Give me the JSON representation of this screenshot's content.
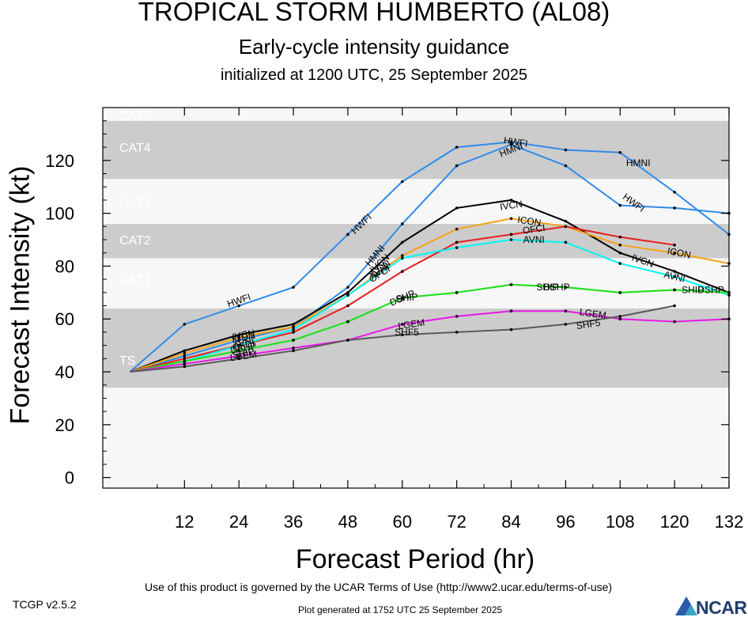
{
  "header": {
    "title": "TROPICAL STORM HUMBERTO (AL08)",
    "subtitle": "Early-cycle intensity guidance",
    "initialized": "initialized at 1200 UTC, 25 September 2025"
  },
  "footer": {
    "terms": "Use of this product is governed by the UCAR Terms of Use (http://www2.ucar.edu/terms-of-use)",
    "version": "TCGP v2.5.2",
    "generated": "Plot generated at 1752 UTC   25 September 2025",
    "logo_text": "NCAR",
    "colors": {
      "logo_text": "#1f3d6b",
      "logo_blue": "#2a5caa",
      "logo_teal": "#3ba3c4"
    }
  },
  "chart_data": {
    "type": "line",
    "xlabel": "Forecast Period (hr)",
    "ylabel": "Forecast Intensity (kt)",
    "xlim": [
      -6,
      132
    ],
    "ylim": [
      -4,
      140
    ],
    "xticks": [
      12,
      24,
      36,
      48,
      60,
      72,
      84,
      96,
      108,
      120,
      132
    ],
    "yticks": [
      0,
      20,
      40,
      60,
      80,
      100,
      120
    ],
    "category_bands": [
      {
        "name": "TS",
        "from": 34,
        "to": 64,
        "color": "#cccccc"
      },
      {
        "name": "CAT1",
        "from": 64,
        "to": 83,
        "color": "#f7f7f7"
      },
      {
        "name": "CAT2",
        "from": 83,
        "to": 96,
        "color": "#cccccc"
      },
      {
        "name": "CAT3",
        "from": 96,
        "to": 113,
        "color": "#f7f7f7"
      },
      {
        "name": "CAT4",
        "from": 113,
        "to": 135,
        "color": "#cccccc"
      },
      {
        "name": "CAT5",
        "from": 135,
        "to": 140,
        "color": "#f7f7f7"
      }
    ],
    "band_colors": {
      "below": "#f7f7f7",
      "label_text": "#ffffff"
    },
    "series": [
      {
        "name": "HWFI",
        "color": "#2f8ce8",
        "x": [
          0,
          12,
          24,
          36,
          48,
          60,
          72,
          84,
          96,
          108,
          120,
          132
        ],
        "values": [
          40,
          58,
          65,
          72,
          92,
          112,
          125,
          127,
          124,
          123,
          108,
          92
        ],
        "labels": [
          {
            "x": 24,
            "y": 67
          },
          {
            "x": 51,
            "y": 96
          },
          {
            "x": 85,
            "y": 127
          },
          {
            "x": 111,
            "y": 104
          }
        ]
      },
      {
        "name": "HMNI",
        "color": "#2f8ce8",
        "x": [
          0,
          12,
          24,
          36,
          48,
          60,
          72,
          84,
          96,
          108,
          120,
          132
        ],
        "values": [
          40,
          46,
          52,
          57,
          72,
          96,
          118,
          126,
          118,
          103,
          102,
          100
        ],
        "labels": [
          {
            "x": 54,
            "y": 84
          },
          {
            "x": 84,
            "y": 124
          },
          {
            "x": 112,
            "y": 119
          }
        ]
      },
      {
        "name": "IVCN",
        "color": "#000000",
        "x": [
          0,
          12,
          24,
          36,
          48,
          60,
          72,
          84,
          96,
          108,
          120,
          132
        ],
        "values": [
          40,
          48,
          54,
          58,
          70,
          89,
          102,
          105,
          97,
          85,
          78,
          70
        ],
        "labels": [
          {
            "x": 25,
            "y": 54
          },
          {
            "x": 55,
            "y": 81
          },
          {
            "x": 84,
            "y": 103
          },
          {
            "x": 113,
            "y": 82
          }
        ]
      },
      {
        "name": "ICON",
        "color": "#f5a316",
        "x": [
          0,
          12,
          24,
          36,
          48,
          60,
          72,
          84,
          96,
          108,
          120,
          132
        ],
        "values": [
          40,
          47,
          53,
          57,
          69,
          84,
          94,
          98,
          95,
          88,
          85,
          81
        ],
        "labels": [
          {
            "x": 25,
            "y": 53
          },
          {
            "x": 55,
            "y": 79
          },
          {
            "x": 88,
            "y": 97
          },
          {
            "x": 121,
            "y": 85
          }
        ]
      },
      {
        "name": "OFCI",
        "color": "#e81c1c",
        "x": [
          0,
          12,
          24,
          36,
          48,
          60,
          72,
          84,
          96,
          108,
          120
        ],
        "values": [
          40,
          45,
          50,
          55,
          65,
          78,
          89,
          92,
          95,
          91,
          88
        ],
        "labels": [
          {
            "x": 25,
            "y": 50
          },
          {
            "x": 55,
            "y": 77
          },
          {
            "x": 89,
            "y": 94
          }
        ]
      },
      {
        "name": "AVNI",
        "color": "#00f5f5",
        "x": [
          0,
          12,
          24,
          36,
          48,
          60,
          72,
          84,
          96,
          108,
          120,
          132
        ],
        "values": [
          40,
          44,
          50,
          56,
          69,
          83,
          87,
          90,
          89,
          81,
          76,
          69
        ],
        "labels": [
          {
            "x": 25,
            "y": 51
          },
          {
            "x": 55,
            "y": 78
          },
          {
            "x": 89,
            "y": 90
          },
          {
            "x": 120,
            "y": 76
          }
        ]
      },
      {
        "name": "DSHP",
        "color": "#21e021",
        "x": [
          0,
          12,
          24,
          36,
          48,
          60,
          72,
          84,
          96,
          108,
          120,
          132
        ],
        "values": [
          40,
          44,
          48,
          52,
          59,
          68,
          70,
          73,
          72,
          70,
          71,
          70
        ],
        "labels": [
          {
            "x": 25,
            "y": 49
          },
          {
            "x": 60,
            "y": 68
          },
          {
            "x": 94,
            "y": 72
          },
          {
            "x": 128,
            "y": 71
          }
        ]
      },
      {
        "name": "SHIP",
        "color": "#21e021",
        "x": [
          0,
          12,
          24,
          36,
          48,
          60,
          72,
          84,
          96,
          108,
          120,
          132
        ],
        "values": [
          40,
          44,
          48,
          52,
          59,
          68,
          70,
          73,
          72,
          70,
          71,
          70
        ],
        "labels": [
          {
            "x": 25,
            "y": 47
          },
          {
            "x": 61,
            "y": 68
          },
          {
            "x": 92,
            "y": 72
          },
          {
            "x": 124,
            "y": 71
          }
        ]
      },
      {
        "name": "LGEM",
        "color": "#e817e8",
        "x": [
          0,
          12,
          24,
          36,
          48,
          60,
          72,
          84,
          96,
          108,
          120,
          132
        ],
        "values": [
          40,
          43,
          46,
          49,
          52,
          58,
          61,
          63,
          63,
          60,
          59,
          60
        ],
        "labels": [
          {
            "x": 25,
            "y": 46
          },
          {
            "x": 62,
            "y": 58
          },
          {
            "x": 102,
            "y": 62
          }
        ]
      },
      {
        "name": "SHF5",
        "color": "#5a5a5a",
        "x": [
          0,
          12,
          24,
          36,
          48,
          60,
          72,
          84,
          96,
          108,
          120
        ],
        "values": [
          40,
          42,
          45,
          48,
          52,
          54,
          55,
          56,
          58,
          61,
          65
        ],
        "labels": [
          {
            "x": 61,
            "y": 55
          },
          {
            "x": 101,
            "y": 58
          }
        ]
      }
    ]
  }
}
